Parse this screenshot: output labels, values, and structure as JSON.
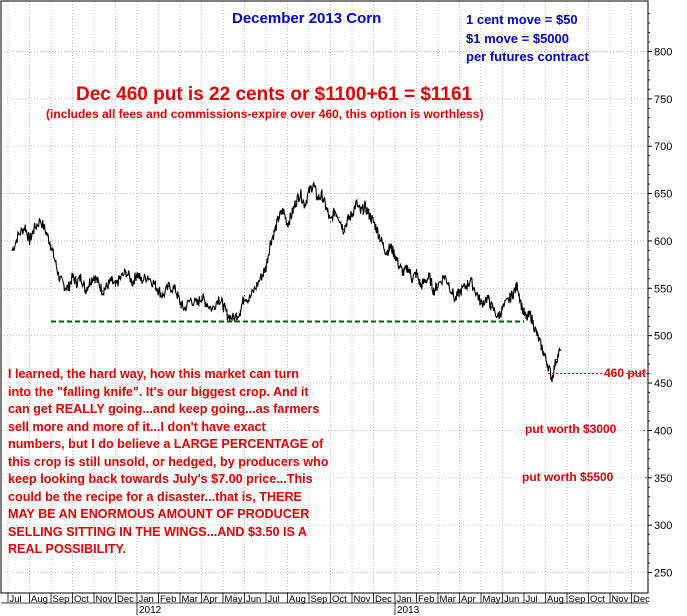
{
  "chart_data": {
    "type": "line",
    "title": "December 2013 Corn",
    "notes": [
      "1 cent move = $50",
      "$1 move = $5000",
      "per futures contract"
    ],
    "headline": "Dec 460 put is 22 cents or $1100+61 = $1161",
    "subheadline": "(includes all fees and commissions-expire over 460, this option is worthless)",
    "commentary": {
      "line1": "I learned, the hard way, how this market can turn",
      "line2": "into the \"falling knife\". It's our biggest crop. And it",
      "line3a": "can get ",
      "line3b": "REALLY",
      "line3c": " going...and keep going...as farmers",
      "line4": "sell more and more of it...I don't have exact",
      "line5a": "numbers, but I do believe a ",
      "line5b": "LARGE PERCENTAGE",
      "line5c": " of",
      "line6": "this crop is still unsold, or hedged, by producers who",
      "line7": "keep looking back towards July's $7.00 price...This",
      "line8a": "could be the recipe for a disaster...that is, ",
      "line8b": "THERE",
      "line9": "MAY BE AN ENORMOUS AMOUNT OF PRODUCER",
      "line10": "SELLING SITTING IN THE WINGS...AND $3.50 IS A",
      "line11": "REAL POSSIBILITY."
    },
    "level_markers": [
      {
        "label": "460 put",
        "y": 460
      },
      {
        "label": "put worth $3000",
        "y": 400
      },
      {
        "label": "put worth $5500",
        "y": 350
      }
    ],
    "support_line": {
      "y": 515,
      "from": "Sep 2011",
      "to": "Jul 2013",
      "color": "#006400"
    },
    "ylim": [
      240,
      830
    ],
    "yticks": [
      250,
      300,
      350,
      400,
      450,
      500,
      550,
      600,
      650,
      700,
      750,
      800
    ],
    "ytick_labels": [
      "250",
      "300",
      "350",
      "400",
      "450",
      "500",
      "550",
      "600",
      "650",
      "700",
      "750",
      "800"
    ],
    "x_months": [
      "Jul",
      "Aug",
      "Sep",
      "Oct",
      "Nov",
      "Dec",
      "Jan",
      "Feb",
      "Mar",
      "Apr",
      "May",
      "Jun",
      "Jul",
      "Aug",
      "Sep",
      "Oct",
      "Nov",
      "Dec",
      "Jan",
      "Feb",
      "Mar",
      "Apr",
      "May",
      "Jun",
      "Jul",
      "Aug",
      "Sep",
      "Oct",
      "Nov",
      "Dec"
    ],
    "x_years": [
      {
        "label": "2012",
        "month_index": 6
      },
      {
        "label": "2013",
        "month_index": 18
      }
    ],
    "series": [
      {
        "color": "#000000",
        "points": [
          [
            0.2,
            590
          ],
          [
            0.5,
            607
          ],
          [
            0.8,
            615
          ],
          [
            1.0,
            600
          ],
          [
            1.2,
            612
          ],
          [
            1.5,
            622
          ],
          [
            1.8,
            608
          ],
          [
            2.0,
            595
          ],
          [
            2.2,
            578
          ],
          [
            2.4,
            560
          ],
          [
            2.6,
            553
          ],
          [
            2.8,
            550
          ],
          [
            3.0,
            562
          ],
          [
            3.2,
            556
          ],
          [
            3.4,
            562
          ],
          [
            3.6,
            548
          ],
          [
            3.8,
            557
          ],
          [
            4.0,
            563
          ],
          [
            4.2,
            556
          ],
          [
            4.4,
            547
          ],
          [
            4.6,
            552
          ],
          [
            4.8,
            558
          ],
          [
            5.0,
            552
          ],
          [
            5.2,
            560
          ],
          [
            5.5,
            567
          ],
          [
            5.8,
            556
          ],
          [
            6.0,
            566
          ],
          [
            6.2,
            558
          ],
          [
            6.5,
            563
          ],
          [
            6.8,
            555
          ],
          [
            7.0,
            548
          ],
          [
            7.2,
            542
          ],
          [
            7.5,
            552
          ],
          [
            7.8,
            548
          ],
          [
            8.0,
            535
          ],
          [
            8.2,
            528
          ],
          [
            8.5,
            538
          ],
          [
            8.8,
            533
          ],
          [
            9.0,
            541
          ],
          [
            9.2,
            535
          ],
          [
            9.5,
            528
          ],
          [
            9.8,
            540
          ],
          [
            10.0,
            532
          ],
          [
            10.2,
            522
          ],
          [
            10.5,
            518
          ],
          [
            10.8,
            526
          ],
          [
            11.0,
            542
          ],
          [
            11.2,
            538
          ],
          [
            11.5,
            550
          ],
          [
            11.8,
            563
          ],
          [
            12.0,
            572
          ],
          [
            12.2,
            598
          ],
          [
            12.4,
            610
          ],
          [
            12.6,
            625
          ],
          [
            12.8,
            632
          ],
          [
            13.0,
            618
          ],
          [
            13.2,
            628
          ],
          [
            13.4,
            642
          ],
          [
            13.6,
            650
          ],
          [
            13.8,
            638
          ],
          [
            14.0,
            652
          ],
          [
            14.2,
            660
          ],
          [
            14.4,
            645
          ],
          [
            14.6,
            648
          ],
          [
            14.8,
            635
          ],
          [
            15.0,
            620
          ],
          [
            15.2,
            632
          ],
          [
            15.4,
            625
          ],
          [
            15.6,
            612
          ],
          [
            15.8,
            622
          ],
          [
            16.0,
            628
          ],
          [
            16.2,
            640
          ],
          [
            16.4,
            630
          ],
          [
            16.6,
            636
          ],
          [
            16.8,
            628
          ],
          [
            17.0,
            620
          ],
          [
            17.2,
            610
          ],
          [
            17.4,
            598
          ],
          [
            17.6,
            588
          ],
          [
            17.8,
            594
          ],
          [
            18.0,
            585
          ],
          [
            18.2,
            573
          ],
          [
            18.4,
            566
          ],
          [
            18.6,
            572
          ],
          [
            18.8,
            560
          ],
          [
            19.0,
            566
          ],
          [
            19.2,
            552
          ],
          [
            19.4,
            558
          ],
          [
            19.6,
            562
          ],
          [
            19.8,
            547
          ],
          [
            20.0,
            554
          ],
          [
            20.3,
            563
          ],
          [
            20.5,
            555
          ],
          [
            20.8,
            538
          ],
          [
            21.0,
            546
          ],
          [
            21.3,
            552
          ],
          [
            21.5,
            558
          ],
          [
            21.8,
            545
          ],
          [
            22.0,
            534
          ],
          [
            22.3,
            540
          ],
          [
            22.5,
            530
          ],
          [
            22.8,
            520
          ],
          [
            23.0,
            528
          ],
          [
            23.3,
            538
          ],
          [
            23.5,
            545
          ],
          [
            23.7,
            553
          ],
          [
            23.9,
            530
          ],
          [
            24.1,
            518
          ],
          [
            24.3,
            522
          ],
          [
            24.5,
            508
          ],
          [
            24.7,
            495
          ],
          [
            24.9,
            483
          ],
          [
            25.1,
            470
          ],
          [
            25.3,
            455
          ],
          [
            25.5,
            475
          ],
          [
            25.7,
            485
          ]
        ]
      }
    ]
  }
}
